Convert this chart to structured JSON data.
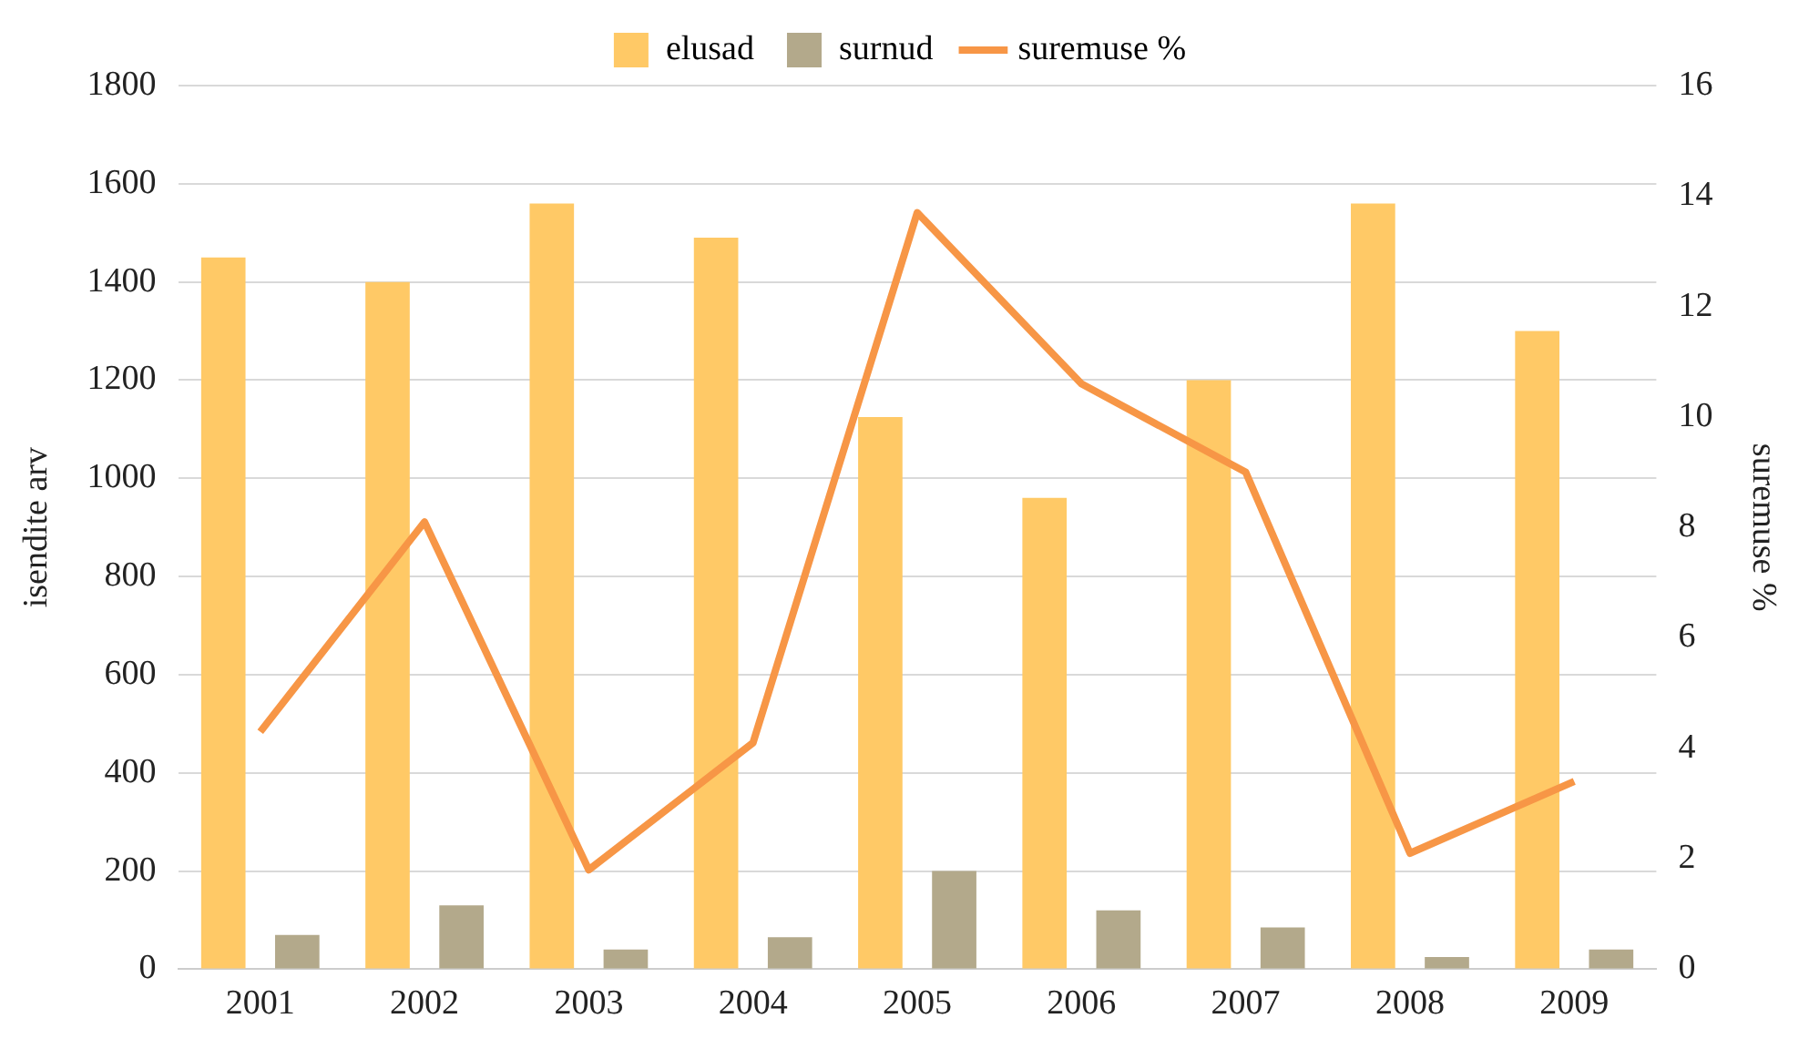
{
  "chart_data": {
    "type": "bar",
    "categories": [
      "2001",
      "2002",
      "2003",
      "2004",
      "2005",
      "2006",
      "2007",
      "2008",
      "2009"
    ],
    "series": [
      {
        "name": "elusad",
        "color": "#ffc966",
        "values": [
          1450,
          1400,
          1560,
          1490,
          1125,
          960,
          1200,
          1560,
          1300
        ]
      },
      {
        "name": "surnud",
        "color": "#b3a98b",
        "values": [
          70,
          130,
          40,
          65,
          200,
          120,
          85,
          25,
          40
        ]
      },
      {
        "name": "suremuse %",
        "type": "line",
        "axis": "y2",
        "color": "#f79646",
        "values": [
          4.3,
          8.1,
          1.8,
          4.1,
          13.7,
          10.6,
          9.0,
          2.1,
          3.4
        ]
      }
    ],
    "ylabel": "isendite arv",
    "y2label": "suremuse %",
    "ylim": [
      0,
      1800
    ],
    "yticks": [
      0,
      200,
      400,
      600,
      800,
      1000,
      1200,
      1400,
      1600,
      1800
    ],
    "y2lim": [
      0,
      16
    ],
    "y2ticks": [
      0,
      2,
      4,
      6,
      8,
      10,
      12,
      14,
      16
    ],
    "grid": "y",
    "legend": "top",
    "marker": "none"
  }
}
